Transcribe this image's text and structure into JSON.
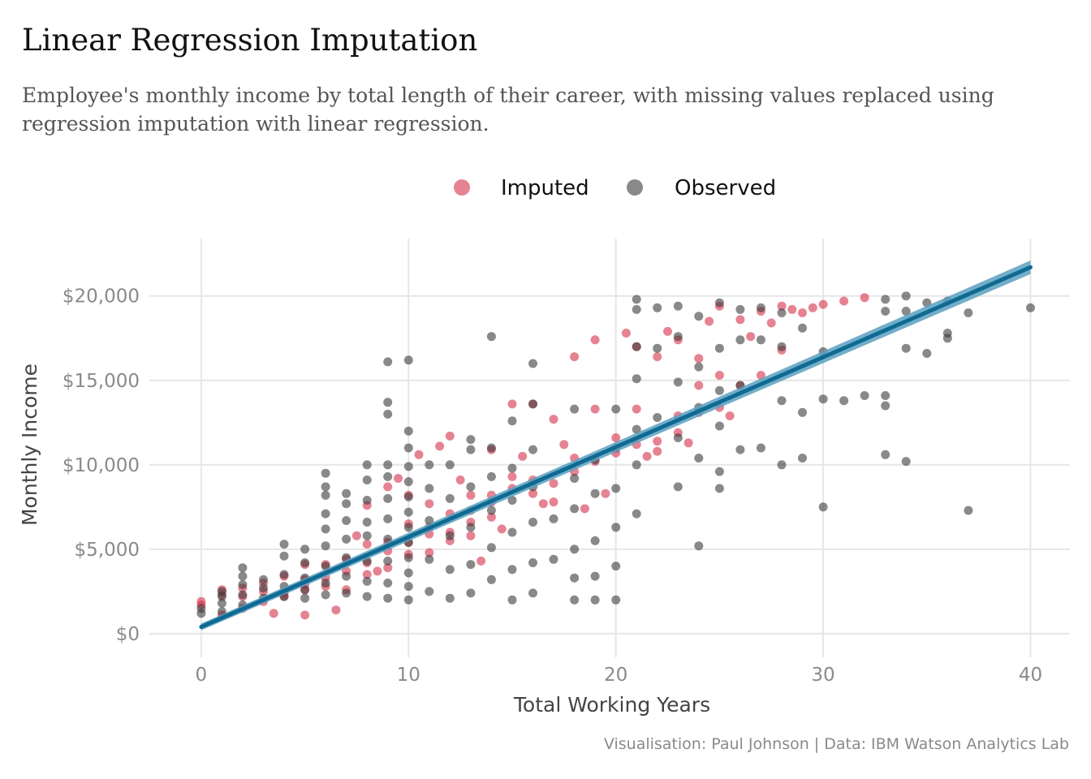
{
  "chart_data": {
    "type": "scatter",
    "title": "Linear Regression Imputation",
    "subtitle": "Employee's monthly income by total length of their career, with missing values replaced using regression imputation with linear regression.",
    "caption": "Visualisation: Paul Johnson  |  Data: IBM Watson Analytics Lab",
    "xlabel": "Total Working Years",
    "ylabel": "Monthly Income",
    "xlim": [
      -2.5,
      41.9
    ],
    "ylim": [
      -1400,
      23400
    ],
    "x_ticks": [
      0,
      10,
      20,
      30,
      40
    ],
    "x_tick_labels": [
      "0",
      "10",
      "20",
      "30",
      "40"
    ],
    "y_ticks": [
      0,
      5000,
      10000,
      15000,
      20000
    ],
    "y_tick_labels": [
      "$0",
      "$5,000",
      "$10,000",
      "$15,000",
      "$20,000"
    ],
    "grid": true,
    "legend_position": "top",
    "legend": [
      {
        "label": "Imputed",
        "color": "#d6304a"
      },
      {
        "label": "Observed",
        "color": "#3a3a3a"
      }
    ],
    "series": [
      {
        "name": "Imputed",
        "color": "#d6304a",
        "points": [
          [
            0,
            1900
          ],
          [
            0,
            1700
          ],
          [
            1,
            2600
          ],
          [
            1,
            1100
          ],
          [
            1,
            2300
          ],
          [
            2,
            2700
          ],
          [
            2,
            1500
          ],
          [
            2,
            2200
          ],
          [
            3,
            2500
          ],
          [
            3,
            1900
          ],
          [
            3,
            3000
          ],
          [
            4,
            2400
          ],
          [
            4,
            3400
          ],
          [
            4,
            2200
          ],
          [
            5,
            3200
          ],
          [
            5,
            2600
          ],
          [
            5,
            2900
          ],
          [
            5,
            4100
          ],
          [
            6,
            4100
          ],
          [
            6,
            2800
          ],
          [
            6,
            3300
          ],
          [
            7,
            3700
          ],
          [
            7,
            2600
          ],
          [
            7,
            4400
          ],
          [
            8,
            5300
          ],
          [
            8,
            4200
          ],
          [
            8,
            3500
          ],
          [
            8,
            7600
          ],
          [
            9,
            5400
          ],
          [
            9,
            4900
          ],
          [
            9,
            3900
          ],
          [
            9,
            8700
          ],
          [
            10,
            6500
          ],
          [
            10,
            5400
          ],
          [
            10,
            4700
          ],
          [
            10,
            8200
          ],
          [
            11,
            5900
          ],
          [
            11,
            6300
          ],
          [
            11,
            4800
          ],
          [
            11,
            7700
          ],
          [
            12,
            7100
          ],
          [
            12,
            6000
          ],
          [
            12,
            5500
          ],
          [
            12,
            11700
          ],
          [
            13,
            7300
          ],
          [
            13,
            6600
          ],
          [
            13,
            5800
          ],
          [
            13,
            8200
          ],
          [
            14,
            8200
          ],
          [
            14,
            7800
          ],
          [
            14,
            6900
          ],
          [
            14,
            10900
          ],
          [
            15,
            8600
          ],
          [
            15,
            9300
          ],
          [
            15,
            13600
          ],
          [
            16,
            9100
          ],
          [
            16,
            8300
          ],
          [
            16,
            13600
          ],
          [
            17,
            8900
          ],
          [
            17,
            7800
          ],
          [
            17,
            12700
          ],
          [
            18,
            9600
          ],
          [
            18,
            10400
          ],
          [
            18,
            16400
          ],
          [
            19,
            10200
          ],
          [
            19,
            13300
          ],
          [
            19,
            17400
          ],
          [
            20,
            10700
          ],
          [
            20,
            11600
          ],
          [
            21,
            11200
          ],
          [
            21,
            13300
          ],
          [
            21,
            17000
          ],
          [
            22,
            11400
          ],
          [
            22,
            10800
          ],
          [
            22,
            16400
          ],
          [
            23,
            11900
          ],
          [
            23,
            12900
          ],
          [
            23,
            17400
          ],
          [
            24,
            13100
          ],
          [
            24,
            14700
          ],
          [
            24,
            16300
          ],
          [
            25,
            13400
          ],
          [
            25,
            15300
          ],
          [
            25,
            19400
          ],
          [
            26,
            14700
          ],
          [
            26,
            18600
          ],
          [
            27,
            15300
          ],
          [
            27,
            19100
          ],
          [
            28,
            16800
          ],
          [
            28,
            19400
          ],
          [
            29,
            19000
          ],
          [
            30,
            19500
          ],
          [
            31,
            19700
          ],
          [
            32,
            19900
          ],
          [
            3.5,
            1200
          ],
          [
            5,
            1100
          ],
          [
            6.5,
            1400
          ],
          [
            7.5,
            5800
          ],
          [
            8.5,
            3700
          ],
          [
            9.5,
            9200
          ],
          [
            10.5,
            10600
          ],
          [
            11.5,
            11100
          ],
          [
            12.5,
            9100
          ],
          [
            13.5,
            4300
          ],
          [
            14.5,
            6200
          ],
          [
            15.5,
            10500
          ],
          [
            16.5,
            7700
          ],
          [
            17.5,
            11200
          ],
          [
            18.5,
            7400
          ],
          [
            19.5,
            8300
          ],
          [
            20.5,
            17800
          ],
          [
            21.5,
            10500
          ],
          [
            22.5,
            17900
          ],
          [
            23.5,
            11300
          ],
          [
            24.5,
            18500
          ],
          [
            25.5,
            12900
          ],
          [
            26.5,
            17600
          ],
          [
            27.5,
            18400
          ],
          [
            28.5,
            19200
          ],
          [
            29.5,
            19300
          ]
        ]
      },
      {
        "name": "Observed",
        "color": "#3a3a3a",
        "points": [
          [
            0,
            1200
          ],
          [
            0,
            1500
          ],
          [
            1,
            1300
          ],
          [
            1,
            1800
          ],
          [
            1,
            2200
          ],
          [
            1,
            2500
          ],
          [
            2,
            1700
          ],
          [
            2,
            2300
          ],
          [
            2,
            2900
          ],
          [
            2,
            3400
          ],
          [
            2,
            3900
          ],
          [
            3,
            2100
          ],
          [
            3,
            2700
          ],
          [
            3,
            3200
          ],
          [
            4,
            2200
          ],
          [
            4,
            2800
          ],
          [
            4,
            3500
          ],
          [
            4,
            4600
          ],
          [
            4,
            5300
          ],
          [
            5,
            2100
          ],
          [
            5,
            2600
          ],
          [
            5,
            3300
          ],
          [
            5,
            4200
          ],
          [
            5,
            5000
          ],
          [
            6,
            2300
          ],
          [
            6,
            3000
          ],
          [
            6,
            4000
          ],
          [
            6,
            5200
          ],
          [
            6,
            6200
          ],
          [
            6,
            7100
          ],
          [
            6,
            8200
          ],
          [
            6,
            8700
          ],
          [
            6,
            9500
          ],
          [
            7,
            2400
          ],
          [
            7,
            3400
          ],
          [
            7,
            4500
          ],
          [
            7,
            5600
          ],
          [
            7,
            6700
          ],
          [
            7,
            7700
          ],
          [
            7,
            8300
          ],
          [
            8,
            2200
          ],
          [
            8,
            3100
          ],
          [
            8,
            4300
          ],
          [
            8,
            5800
          ],
          [
            8,
            6600
          ],
          [
            8,
            7900
          ],
          [
            8,
            9100
          ],
          [
            8,
            10000
          ],
          [
            9,
            2100
          ],
          [
            9,
            3000
          ],
          [
            9,
            4300
          ],
          [
            9,
            5600
          ],
          [
            9,
            6800
          ],
          [
            9,
            8000
          ],
          [
            9,
            9300
          ],
          [
            9,
            10000
          ],
          [
            9,
            13700
          ],
          [
            9,
            13000
          ],
          [
            9,
            16100
          ],
          [
            10,
            2000
          ],
          [
            10,
            2800
          ],
          [
            10,
            3600
          ],
          [
            10,
            4500
          ],
          [
            10,
            5400
          ],
          [
            10,
            6300
          ],
          [
            10,
            7200
          ],
          [
            10,
            8100
          ],
          [
            10,
            9000
          ],
          [
            10,
            9900
          ],
          [
            10,
            11000
          ],
          [
            10,
            12000
          ],
          [
            10,
            16200
          ],
          [
            11,
            2500
          ],
          [
            11,
            4400
          ],
          [
            11,
            6700
          ],
          [
            11,
            8600
          ],
          [
            11,
            10000
          ],
          [
            12,
            2100
          ],
          [
            12,
            3800
          ],
          [
            12,
            5800
          ],
          [
            12,
            8000
          ],
          [
            12,
            10000
          ],
          [
            13,
            2400
          ],
          [
            13,
            4100
          ],
          [
            13,
            6300
          ],
          [
            13,
            8700
          ],
          [
            13,
            10900
          ],
          [
            13,
            11500
          ],
          [
            14,
            3200
          ],
          [
            14,
            5100
          ],
          [
            14,
            7300
          ],
          [
            14,
            9300
          ],
          [
            14,
            11000
          ],
          [
            14,
            17600
          ],
          [
            15,
            2000
          ],
          [
            15,
            3800
          ],
          [
            15,
            6000
          ],
          [
            15,
            7900
          ],
          [
            15,
            9800
          ],
          [
            15,
            12600
          ],
          [
            16,
            2400
          ],
          [
            16,
            4200
          ],
          [
            16,
            6600
          ],
          [
            16,
            8700
          ],
          [
            16,
            10900
          ],
          [
            16,
            13600
          ],
          [
            16,
            16000
          ],
          [
            17,
            4400
          ],
          [
            17,
            6800
          ],
          [
            18,
            2000
          ],
          [
            18,
            3300
          ],
          [
            18,
            5000
          ],
          [
            18,
            7400
          ],
          [
            18,
            9200
          ],
          [
            18,
            13300
          ],
          [
            19,
            2000
          ],
          [
            19,
            3400
          ],
          [
            19,
            5500
          ],
          [
            19,
            8300
          ],
          [
            19,
            10300
          ],
          [
            20,
            2000
          ],
          [
            20,
            4000
          ],
          [
            20,
            6300
          ],
          [
            20,
            8600
          ],
          [
            20,
            11000
          ],
          [
            20,
            13300
          ],
          [
            21,
            7100
          ],
          [
            21,
            10000
          ],
          [
            21,
            12100
          ],
          [
            21,
            15100
          ],
          [
            21,
            17000
          ],
          [
            21,
            19200
          ],
          [
            21,
            19800
          ],
          [
            22,
            12800
          ],
          [
            22,
            16900
          ],
          [
            22,
            19300
          ],
          [
            23,
            8700
          ],
          [
            23,
            11600
          ],
          [
            23,
            14900
          ],
          [
            23,
            17600
          ],
          [
            23,
            19400
          ],
          [
            24,
            5200
          ],
          [
            24,
            10400
          ],
          [
            24,
            13400
          ],
          [
            24,
            15800
          ],
          [
            24,
            18800
          ],
          [
            25,
            8600
          ],
          [
            25,
            9600
          ],
          [
            25,
            12300
          ],
          [
            25,
            14400
          ],
          [
            25,
            16900
          ],
          [
            25,
            19600
          ],
          [
            26,
            10900
          ],
          [
            26,
            14700
          ],
          [
            26,
            17400
          ],
          [
            26,
            19200
          ],
          [
            27,
            11000
          ],
          [
            27,
            17400
          ],
          [
            27,
            19300
          ],
          [
            28,
            10000
          ],
          [
            28,
            13800
          ],
          [
            28,
            17000
          ],
          [
            28,
            19000
          ],
          [
            29,
            10400
          ],
          [
            29,
            13100
          ],
          [
            29,
            18100
          ],
          [
            30,
            7500
          ],
          [
            30,
            13900
          ],
          [
            30,
            16700
          ],
          [
            31,
            13800
          ],
          [
            32,
            14100
          ],
          [
            33,
            10600
          ],
          [
            33,
            13500
          ],
          [
            33,
            14100
          ],
          [
            33,
            19100
          ],
          [
            33,
            19800
          ],
          [
            34,
            10200
          ],
          [
            34,
            16900
          ],
          [
            34,
            19100
          ],
          [
            34,
            20000
          ],
          [
            35,
            16600
          ],
          [
            35,
            19600
          ],
          [
            36,
            17800
          ],
          [
            36,
            17500
          ],
          [
            36,
            19700
          ],
          [
            37,
            7300
          ],
          [
            37,
            19000
          ],
          [
            40,
            19300
          ]
        ]
      }
    ],
    "regression": {
      "name": "Linear fit",
      "color": "#0f6a93",
      "band_color": "#5ba0bf",
      "x": [
        0,
        40
      ],
      "y": [
        400,
        21700
      ],
      "band_lower": [
        200,
        21300
      ],
      "band_upper": [
        600,
        22100
      ]
    }
  }
}
